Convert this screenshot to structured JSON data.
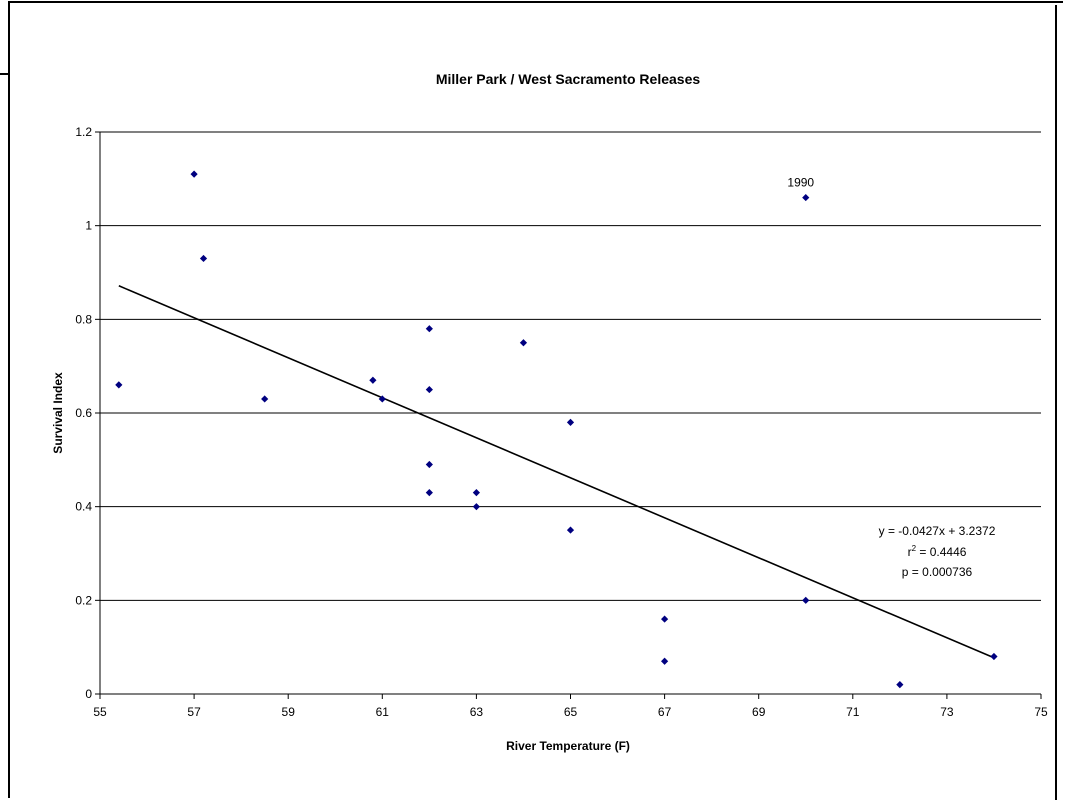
{
  "chart_data": {
    "type": "scatter",
    "title": "Miller Park / West Sacramento Releases",
    "xlabel": "River Temperature (F)",
    "ylabel": "Survival Index",
    "xlim": [
      55,
      75
    ],
    "ylim": [
      0,
      1.2
    ],
    "xticks": [
      "55",
      "57",
      "59",
      "61",
      "63",
      "65",
      "67",
      "69",
      "71",
      "73",
      "75"
    ],
    "yticks": [
      "0",
      "0.2",
      "0.4",
      "0.6",
      "0.8",
      "1",
      "1.2"
    ],
    "grid": "horizontal",
    "marker_color": "#000080",
    "points": [
      {
        "x": 55.4,
        "y": 0.66
      },
      {
        "x": 57.0,
        "y": 1.11
      },
      {
        "x": 57.2,
        "y": 0.93
      },
      {
        "x": 58.5,
        "y": 0.63
      },
      {
        "x": 60.8,
        "y": 0.67
      },
      {
        "x": 61.0,
        "y": 0.63
      },
      {
        "x": 62.0,
        "y": 0.78
      },
      {
        "x": 62.0,
        "y": 0.65
      },
      {
        "x": 62.0,
        "y": 0.49
      },
      {
        "x": 62.0,
        "y": 0.43
      },
      {
        "x": 63.0,
        "y": 0.43
      },
      {
        "x": 63.0,
        "y": 0.4
      },
      {
        "x": 64.0,
        "y": 0.75
      },
      {
        "x": 65.0,
        "y": 0.58
      },
      {
        "x": 65.0,
        "y": 0.35
      },
      {
        "x": 67.0,
        "y": 0.16
      },
      {
        "x": 67.0,
        "y": 0.07
      },
      {
        "x": 70.0,
        "y": 1.06
      },
      {
        "x": 70.0,
        "y": 0.2
      },
      {
        "x": 72.0,
        "y": 0.02
      },
      {
        "x": 74.0,
        "y": 0.08
      }
    ],
    "point_label": {
      "x": 70.0,
      "y": 1.06,
      "text": "1990"
    },
    "trendline": {
      "x_start": 55.4,
      "x_end": 74.0,
      "slope": -0.0427,
      "intercept": 3.2372,
      "equation": "y = -0.0427x + 3.2372",
      "r2_prefix": "r",
      "r2_sup": "2",
      "r2_suffix": " = 0.4446",
      "p_value": "p = 0.000736"
    }
  }
}
